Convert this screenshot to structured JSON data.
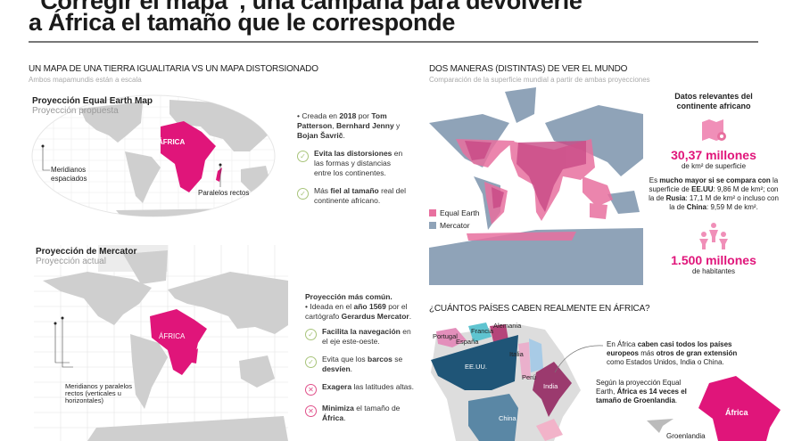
{
  "header": {
    "title_line1": "“Corregir el mapa”, una campaña para devolverle",
    "title_line2": "a África el tamaño que le corresponde"
  },
  "left_section": {
    "heading": "UN MAPA DE UNA TIERRA IGUALITARIA VS UN MAPA DISTORSIONADO",
    "subheading": "Ambos mapamundis están a escala"
  },
  "equal_earth": {
    "title": "Proyección Equal Earth Map",
    "subtitle": "Proyección propuesta",
    "africa_label": "ÁFRICA",
    "note_meridians": "Meridianos espaciados",
    "note_parallels": "Paralelos rectos",
    "intro": [
      "• Creada en ",
      "2018",
      " por ",
      "Tom Patterson",
      ", ",
      "Bernhard Jenny",
      " y ",
      "Bojan Šavrič",
      "."
    ],
    "points": [
      {
        "icon": "check",
        "bold": "Evita las distorsiones",
        "rest": " en las formas y distancias entre los continentes."
      },
      {
        "icon": "check",
        "pre": "Más ",
        "bold": "fiel al tamaño",
        "rest": " real del continente africano."
      }
    ]
  },
  "mercator": {
    "title": "Proyección de Mercator",
    "subtitle": "Proyección actual",
    "africa_label": "ÁFRICA",
    "note": "Meridianos y paralelos rectos (verticales u horizontales)",
    "heading": "Proyección más común.",
    "intro": [
      "• Ideada en el ",
      "año 1569",
      " por el cartógrafo ",
      "Gerardus Mercator",
      "."
    ],
    "points": [
      {
        "icon": "check",
        "bold": "Facilita la navegación",
        "rest": " en el eje este-oeste."
      },
      {
        "icon": "check",
        "pre": "Evita que los ",
        "bold": "barcos",
        "mid": " se ",
        "bold2": "desvíen",
        "rest": "."
      },
      {
        "icon": "cross",
        "bold": "Exagera",
        "rest": " las latitudes altas."
      },
      {
        "icon": "cross",
        "bold": "Minimiza",
        "rest": " el tamaño de ",
        "bold2": "África",
        "end": "."
      }
    ]
  },
  "right_section": {
    "heading": "DOS MANERAS (DISTINTAS) DE VER EL MUNDO",
    "subheading": "Comparación de la superficie mundial a partir de ambas proyecciones",
    "legend": [
      {
        "label": "Equal Earth",
        "color": "#e8709f"
      },
      {
        "label": "Mercator",
        "color": "#8fa3b8"
      }
    ]
  },
  "stats": {
    "heading": "Datos relevantes del continente africano",
    "area_value": "30,37 millones",
    "area_unit": "de km² de superficie",
    "comparison": [
      "Es ",
      "mucho mayor si se compara con",
      " la superficie de ",
      "EE.UU",
      ": 9,86 M de km²; con la de ",
      "Rusia",
      ": 17,1 M de km² o incluso con la de ",
      "China",
      ": 9,59 M de km²."
    ],
    "population_value": "1.500 millones",
    "population_unit": "de habitantes"
  },
  "bottom_section": {
    "heading": "¿CUÁNTOS PAÍSES CABEN REALMENTE EN ÁFRICA?",
    "countries": [
      "Portugal",
      "España",
      "Francia",
      "Alemania",
      "Italia",
      "EE.UU.",
      "Perú",
      "India",
      "China"
    ],
    "callout": [
      "En África ",
      "caben casi todos los países europeos",
      " más ",
      "otros de gran extensión",
      " como Estados Unidos, India o China."
    ],
    "greenland_text": [
      "Según la proyección Equal Earth, ",
      "África es 14 veces el tamaño de Groenlandia",
      "."
    ],
    "africa_label": "África",
    "greenland_label": "Groenlandia"
  },
  "colors": {
    "accent": "#e0157a",
    "pink_light": "#e8709f",
    "mercator": "#8fa3b8",
    "land": "#cfcfcf"
  }
}
